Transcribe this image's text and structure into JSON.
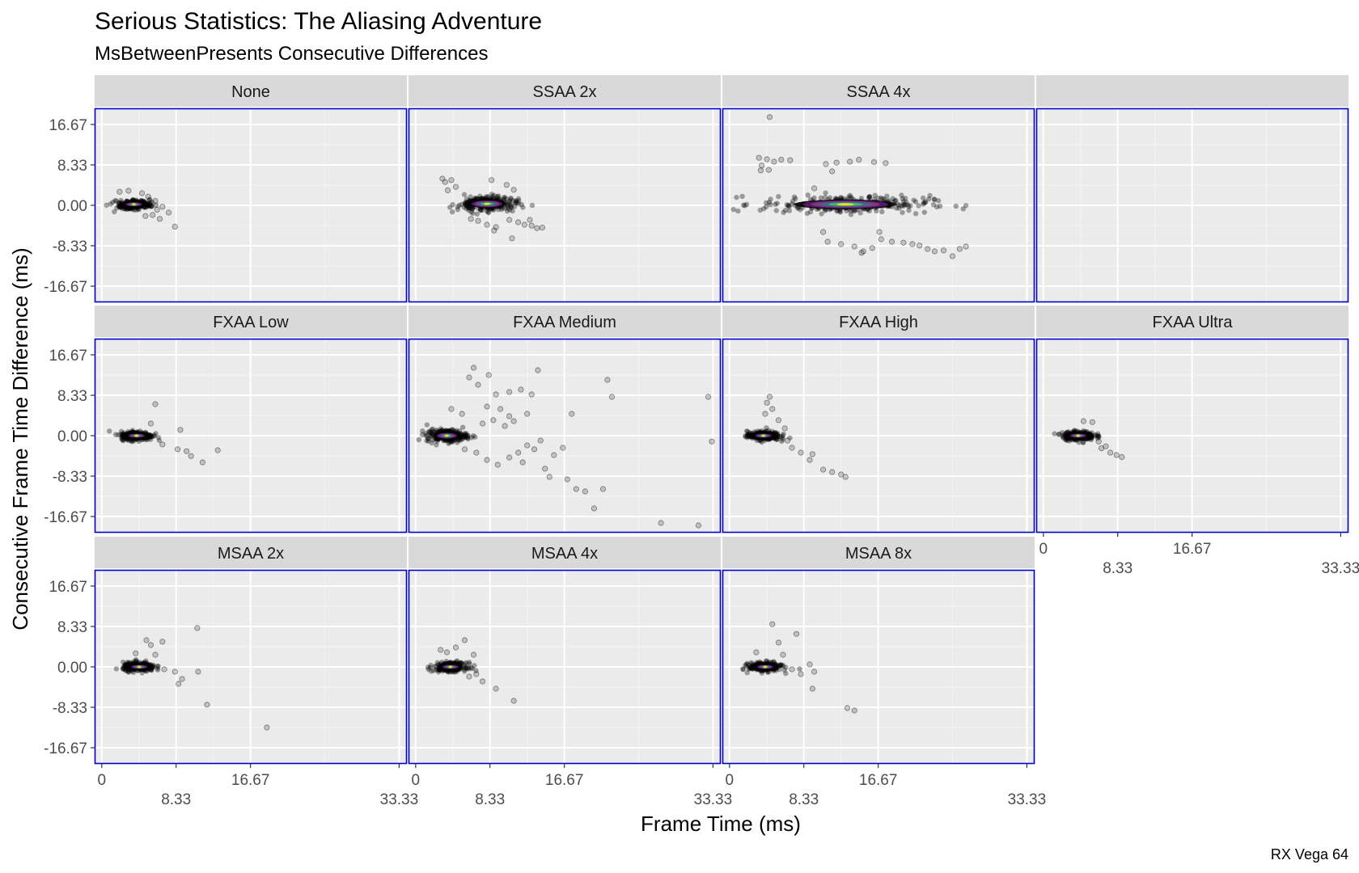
{
  "chart_data": {
    "type": "scatter",
    "title": "Serious Statistics: The Aliasing Adventure",
    "subtitle": "MsBetweenPresents Consecutive Differences",
    "xlabel": "Frame Time (ms)",
    "ylabel": "Consecutive Frame Time Difference (ms)",
    "caption": "RX Vega 64",
    "xlim": [
      -0.8,
      34.2
    ],
    "ylim": [
      -20.0,
      20.0
    ],
    "x_ticks": [
      0,
      8.33,
      16.67,
      33.33
    ],
    "x_tick_labels": [
      "0",
      "8.33",
      "16.67",
      "33.33"
    ],
    "y_ticks": [
      16.67,
      8.33,
      0,
      -8.33,
      -16.67
    ],
    "y_tick_labels": [
      "16.67",
      "8.33",
      "0.00",
      "-8.33",
      "-16.67"
    ],
    "panel_border_color": "#0000cc",
    "panel_background": "#ebebeb",
    "strip_background": "#d9d9d9",
    "point_color": "#000000",
    "density_palette": [
      "#000004",
      "#51127c",
      "#b63679",
      "#3b528b",
      "#21918c",
      "#5ec962",
      "#fde725"
    ],
    "panels": [
      {
        "label": "None",
        "core": {
          "x": 3.6,
          "y": 0.2,
          "sx": 2.0,
          "sy": 1.0
        },
        "points": [
          [
            2.0,
            2.8
          ],
          [
            4.5,
            2.5
          ],
          [
            5.2,
            1.8
          ],
          [
            6.0,
            0.9
          ],
          [
            6.2,
            -0.9
          ],
          [
            7.5,
            -1.5
          ],
          [
            8.2,
            -4.4
          ],
          [
            6.5,
            -2.8
          ],
          [
            5.7,
            -2.0
          ],
          [
            3.0,
            3.0
          ],
          [
            6.8,
            -0.3
          ],
          [
            4.9,
            -2.2
          ]
        ]
      },
      {
        "label": "SSAA 2x",
        "core": {
          "x": 8.0,
          "y": 0.3,
          "sx": 3.8,
          "sy": 1.7
        },
        "points": [
          [
            3.0,
            5.5
          ],
          [
            3.3,
            4.8
          ],
          [
            4.0,
            5.2
          ],
          [
            4.5,
            3.8
          ],
          [
            3.6,
            3.1
          ],
          [
            8.5,
            5.2
          ],
          [
            10.2,
            4.2
          ],
          [
            11.0,
            3.2
          ],
          [
            6.2,
            -2.8
          ],
          [
            7.0,
            -3.2
          ],
          [
            8.0,
            -4.0
          ],
          [
            9.0,
            -4.5
          ],
          [
            10.5,
            -3.0
          ],
          [
            11.5,
            -3.5
          ],
          [
            12.2,
            -4.0
          ],
          [
            13.0,
            -4.2
          ],
          [
            13.6,
            -4.7
          ],
          [
            14.2,
            -4.6
          ],
          [
            10.8,
            -6.8
          ],
          [
            8.8,
            -5.2
          ],
          [
            12.8,
            -3.0
          ]
        ]
      },
      {
        "label": "SSAA 4x",
        "core": {
          "x": 13.0,
          "y": 0.2,
          "sx": 10.5,
          "sy": 2.0
        },
        "points": [
          [
            4.5,
            18.2
          ],
          [
            3.3,
            9.8
          ],
          [
            3.6,
            8.2
          ],
          [
            4.2,
            9.5
          ],
          [
            5.0,
            9.0
          ],
          [
            5.8,
            9.4
          ],
          [
            6.8,
            9.3
          ],
          [
            4.4,
            7.3
          ],
          [
            3.5,
            7.2
          ],
          [
            10.8,
            8.5
          ],
          [
            12.0,
            8.8
          ],
          [
            13.5,
            9.0
          ],
          [
            14.5,
            9.4
          ],
          [
            16.2,
            8.9
          ],
          [
            17.5,
            8.7
          ],
          [
            11.5,
            7.0
          ],
          [
            9.5,
            3.5
          ],
          [
            10.5,
            -5.5
          ],
          [
            11.0,
            -7.5
          ],
          [
            12.5,
            -8.0
          ],
          [
            14.0,
            -8.5
          ],
          [
            15.0,
            -9.5
          ],
          [
            16.0,
            -8.8
          ],
          [
            17.0,
            -7.0
          ],
          [
            18.2,
            -7.5
          ],
          [
            19.5,
            -7.7
          ],
          [
            20.5,
            -8.0
          ],
          [
            21.3,
            -8.3
          ],
          [
            22.2,
            -9.0
          ],
          [
            23.0,
            -9.5
          ],
          [
            24.0,
            -9.3
          ],
          [
            25.0,
            -10.5
          ],
          [
            25.8,
            -9.0
          ],
          [
            26.5,
            -8.5
          ],
          [
            14.8,
            -9.8
          ],
          [
            16.8,
            -5.5
          ]
        ]
      },
      {
        "label": "",
        "core": null,
        "points": []
      },
      {
        "label": "FXAA Low",
        "core": {
          "x": 3.9,
          "y": 0.0,
          "sx": 2.0,
          "sy": 1.0
        },
        "points": [
          [
            6.0,
            6.5
          ],
          [
            8.8,
            1.2
          ],
          [
            8.5,
            -2.8
          ],
          [
            9.5,
            -3.2
          ],
          [
            10.0,
            -4.2
          ],
          [
            11.3,
            -5.5
          ],
          [
            13.0,
            -3.0
          ],
          [
            6.8,
            -1.8
          ],
          [
            5.5,
            2.5
          ]
        ]
      },
      {
        "label": "FXAA Medium",
        "core": {
          "x": 3.5,
          "y": 0.0,
          "sx": 2.5,
          "sy": 1.4
        },
        "points": [
          [
            6.5,
            14.0
          ],
          [
            6.0,
            12.0
          ],
          [
            7.0,
            10.5
          ],
          [
            8.2,
            12.5
          ],
          [
            9.0,
            8.5
          ],
          [
            10.5,
            9.0
          ],
          [
            11.8,
            9.5
          ],
          [
            13.0,
            8.5
          ],
          [
            13.7,
            13.5
          ],
          [
            8.0,
            6.0
          ],
          [
            9.5,
            5.5
          ],
          [
            10.5,
            4.0
          ],
          [
            11.0,
            3.0
          ],
          [
            8.7,
            3.2
          ],
          [
            5.2,
            4.5
          ],
          [
            4.0,
            5.5
          ],
          [
            7.5,
            2.5
          ],
          [
            10.0,
            2.0
          ],
          [
            12.5,
            4.5
          ],
          [
            14.0,
            -1.0
          ],
          [
            12.5,
            -2.0
          ],
          [
            11.5,
            -3.5
          ],
          [
            10.5,
            -4.5
          ],
          [
            9.2,
            -6.0
          ],
          [
            8.0,
            -5.0
          ],
          [
            6.8,
            -3.5
          ],
          [
            12.0,
            -5.5
          ],
          [
            14.5,
            -6.8
          ],
          [
            15.0,
            -8.5
          ],
          [
            17.0,
            -9.0
          ],
          [
            18.0,
            -11.0
          ],
          [
            19.0,
            -11.5
          ],
          [
            20.0,
            -15.0
          ],
          [
            17.5,
            4.5
          ],
          [
            16.5,
            -2.5
          ],
          [
            21.5,
            11.5
          ],
          [
            22.0,
            8.0
          ],
          [
            21.0,
            -11.0
          ],
          [
            27.5,
            -18.0
          ],
          [
            31.7,
            -18.5
          ],
          [
            32.8,
            8.0
          ],
          [
            33.2,
            -1.2
          ],
          [
            5.5,
            -2.8
          ],
          [
            15.5,
            -4.0
          ],
          [
            13.3,
            -2.8
          ]
        ]
      },
      {
        "label": "FXAA High",
        "core": {
          "x": 3.8,
          "y": 0.0,
          "sx": 2.0,
          "sy": 1.0
        },
        "points": [
          [
            4.5,
            8.0
          ],
          [
            4.2,
            6.8
          ],
          [
            4.8,
            5.5
          ],
          [
            4.0,
            4.5
          ],
          [
            5.5,
            3.2
          ],
          [
            6.5,
            -1.0
          ],
          [
            7.0,
            -2.5
          ],
          [
            8.0,
            -3.5
          ],
          [
            9.0,
            -5.0
          ],
          [
            10.5,
            -7.0
          ],
          [
            11.5,
            -7.5
          ],
          [
            12.5,
            -8.0
          ],
          [
            13.0,
            -8.5
          ],
          [
            6.2,
            1.5
          ],
          [
            9.3,
            -3.8
          ]
        ]
      },
      {
        "label": "FXAA Ultra",
        "core": {
          "x": 3.9,
          "y": 0.0,
          "sx": 2.0,
          "sy": 1.0
        },
        "points": [
          [
            5.5,
            2.8
          ],
          [
            6.2,
            -1.2
          ],
          [
            7.0,
            -2.2
          ],
          [
            7.5,
            -3.5
          ],
          [
            8.2,
            -4.0
          ],
          [
            8.8,
            -4.4
          ],
          [
            4.5,
            3.0
          ],
          [
            6.5,
            -2.6
          ]
        ]
      },
      {
        "label": "MSAA 2x",
        "core": {
          "x": 4.2,
          "y": 0.0,
          "sx": 2.0,
          "sy": 1.0
        },
        "points": [
          [
            5.0,
            5.5
          ],
          [
            5.5,
            4.5
          ],
          [
            6.8,
            5.2
          ],
          [
            10.7,
            8.0
          ],
          [
            7.0,
            -0.5
          ],
          [
            8.2,
            -1.0
          ],
          [
            9.0,
            -2.5
          ],
          [
            8.6,
            -3.5
          ],
          [
            10.8,
            -1.0
          ],
          [
            11.8,
            -7.8
          ],
          [
            18.5,
            -12.5
          ],
          [
            6.0,
            2.5
          ],
          [
            3.8,
            2.8
          ]
        ]
      },
      {
        "label": "MSAA 4x",
        "core": {
          "x": 3.9,
          "y": 0.0,
          "sx": 2.0,
          "sy": 1.0
        },
        "points": [
          [
            5.5,
            5.5
          ],
          [
            4.5,
            4.0
          ],
          [
            2.8,
            3.5
          ],
          [
            6.5,
            2.5
          ],
          [
            6.8,
            -1.5
          ],
          [
            7.5,
            -3.0
          ],
          [
            9.0,
            -4.5
          ],
          [
            11.0,
            -7.0
          ],
          [
            3.5,
            3.0
          ],
          [
            6.0,
            -2.0
          ]
        ]
      },
      {
        "label": "MSAA 8x",
        "core": {
          "x": 4.0,
          "y": 0.0,
          "sx": 2.0,
          "sy": 1.0
        },
        "points": [
          [
            4.8,
            8.8
          ],
          [
            5.5,
            5.0
          ],
          [
            7.5,
            6.8
          ],
          [
            7.0,
            -0.5
          ],
          [
            8.0,
            -1.5
          ],
          [
            9.0,
            0.5
          ],
          [
            9.5,
            -1.0
          ],
          [
            9.3,
            -4.5
          ],
          [
            13.2,
            -8.5
          ],
          [
            14.0,
            -9.0
          ],
          [
            3.0,
            3.0
          ],
          [
            6.0,
            2.5
          ]
        ]
      }
    ]
  }
}
